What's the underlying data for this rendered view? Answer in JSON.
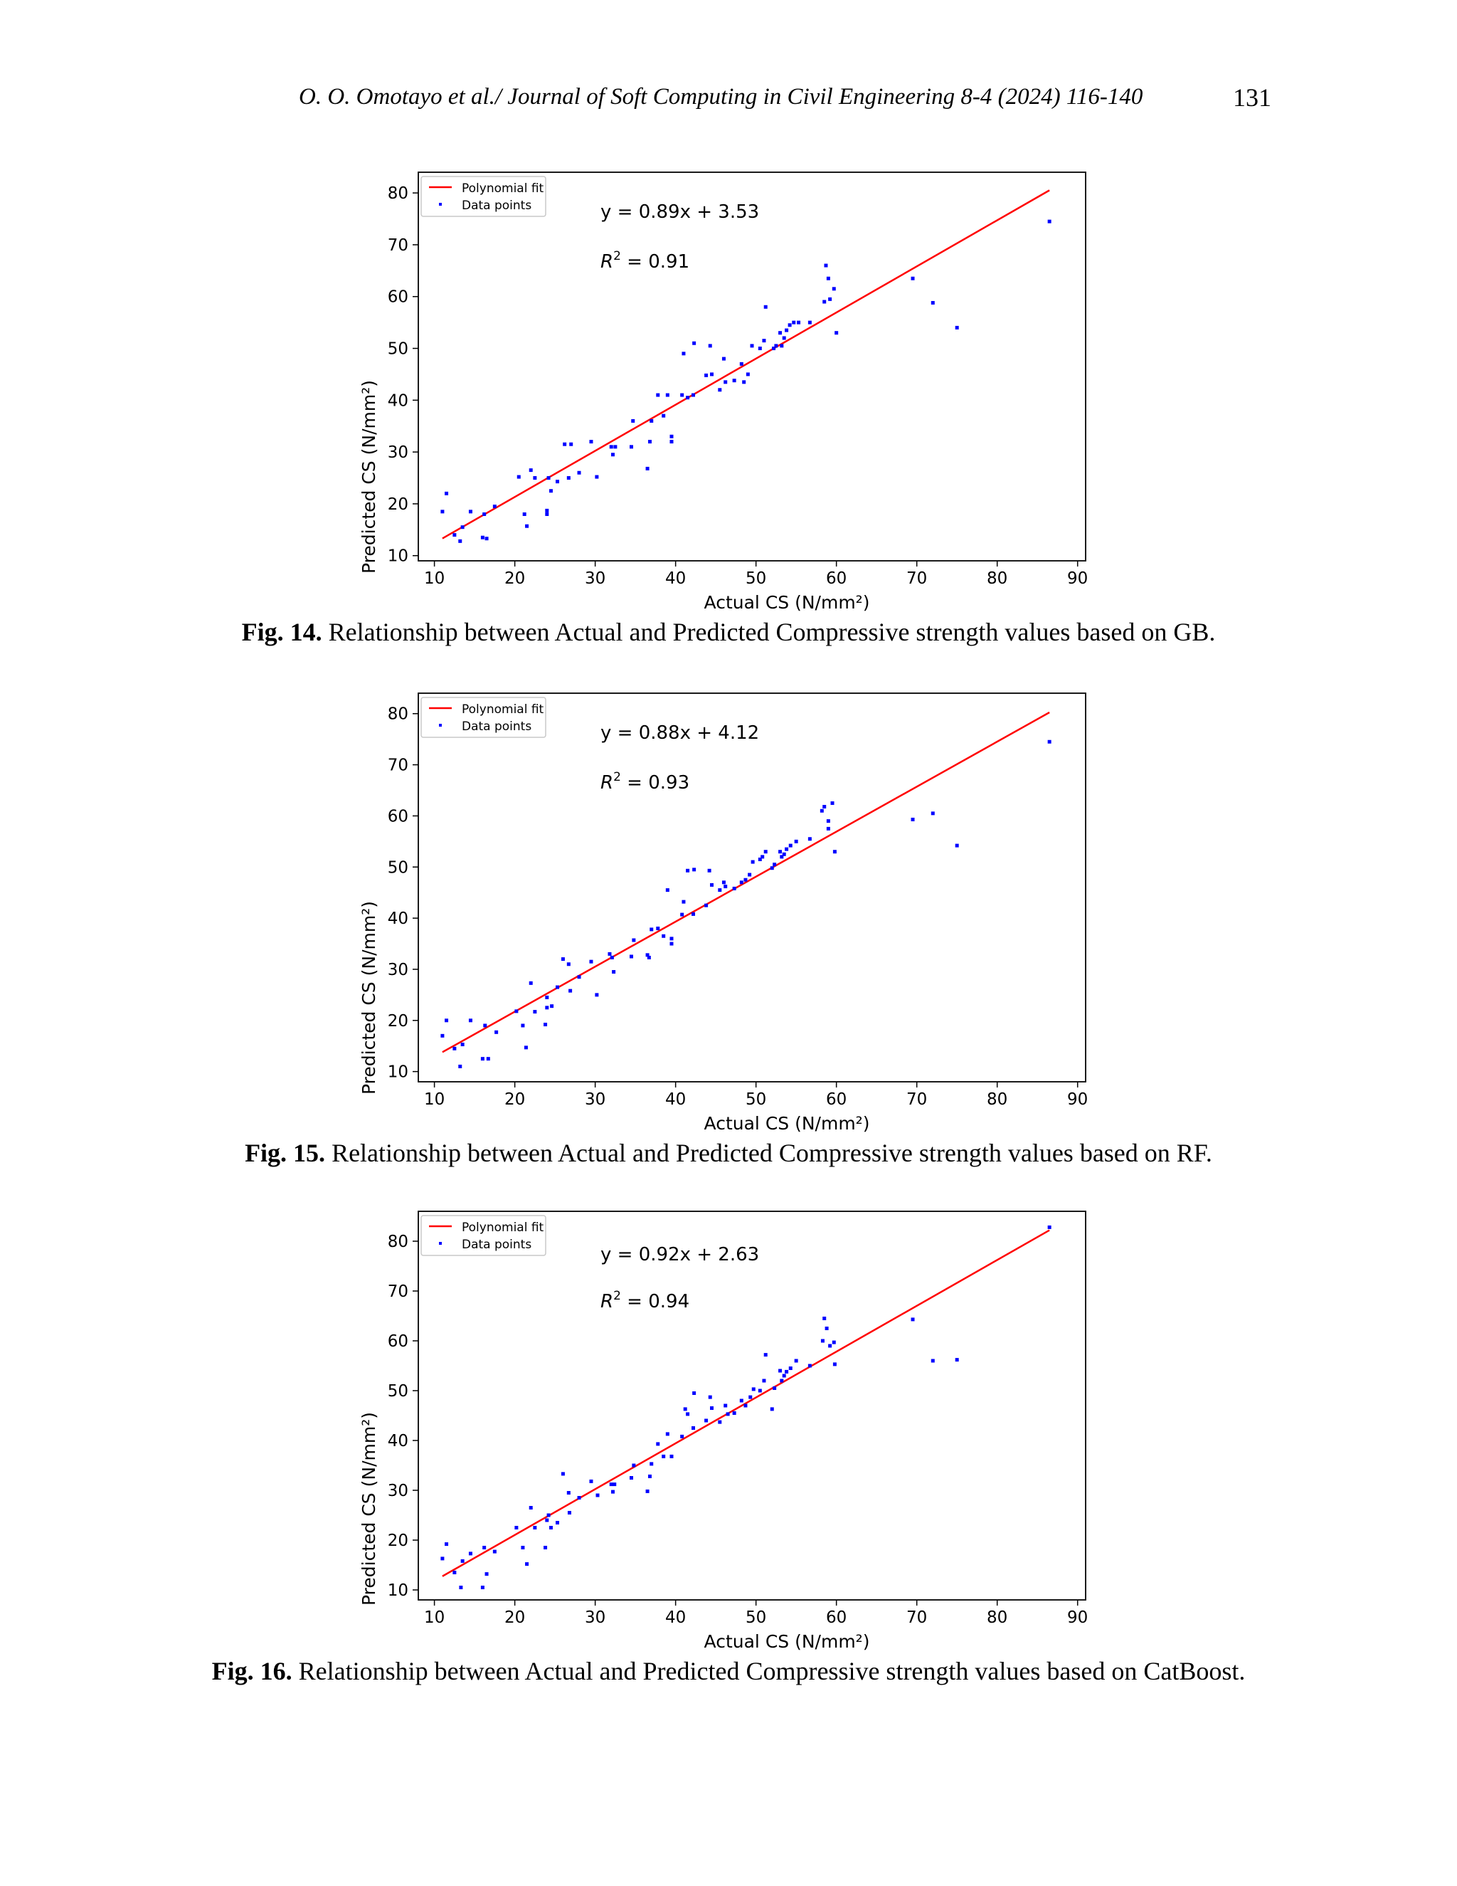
{
  "header": {
    "running_title": "O. O. Omotayo et al./ Journal of Soft Computing in Civil Engineering 8-4 (2024) 116-140",
    "page_number": "131"
  },
  "colors": {
    "fit_line": "#ff0000",
    "points": "#0000ff",
    "axes": "#000000"
  },
  "figures": [
    {
      "caption_label": "Fig. 14.",
      "caption_text": " Relationship between Actual and Predicted Compressive strength values based on GB.",
      "legend": [
        "Polynomial fit",
        "Data points"
      ],
      "equation": "y = 0.89x + 3.53",
      "r2_value": " = 0.91",
      "xlabel": "Actual CS (N/mm²)",
      "ylabel": "Predicted CS (N/mm²)"
    },
    {
      "caption_label": "Fig. 15.",
      "caption_text": " Relationship between Actual and Predicted Compressive strength values based on RF.",
      "legend": [
        "Polynomial fit",
        "Data points"
      ],
      "equation": "y = 0.88x + 4.12",
      "r2_value": " = 0.93",
      "xlabel": "Actual CS (N/mm²)",
      "ylabel": "Predicted CS (N/mm²)"
    },
    {
      "caption_label": "Fig. 16.",
      "caption_text": " Relationship between Actual and Predicted Compressive strength values based on CatBoost.",
      "legend": [
        "Polynomial fit",
        "Data points"
      ],
      "equation": "y = 0.92x + 2.63",
      "r2_value": " = 0.94",
      "xlabel": "Actual CS (N/mm²)",
      "ylabel": "Predicted CS (N/mm²)"
    }
  ],
  "chart_data": [
    {
      "type": "scatter",
      "xlim": [
        8,
        91
      ],
      "ylim": [
        9,
        84
      ],
      "xticks": [
        10,
        20,
        30,
        40,
        50,
        60,
        70,
        80,
        90
      ],
      "yticks": [
        10,
        20,
        30,
        40,
        50,
        60,
        70,
        80
      ],
      "fit": {
        "slope": 0.89,
        "intercept": 3.53,
        "x_range": [
          11,
          86.5
        ]
      },
      "legend_position": "upper-left",
      "points": [
        [
          11,
          18.5
        ],
        [
          11.5,
          22
        ],
        [
          12.5,
          14
        ],
        [
          13.2,
          12.8
        ],
        [
          13.5,
          15.5
        ],
        [
          14.5,
          18.5
        ],
        [
          16,
          13.5
        ],
        [
          16.2,
          18
        ],
        [
          16.5,
          13.3
        ],
        [
          17.5,
          19.5
        ],
        [
          20.5,
          25.2
        ],
        [
          21.2,
          18
        ],
        [
          21.5,
          15.7
        ],
        [
          22,
          26.5
        ],
        [
          22.5,
          25
        ],
        [
          24,
          18
        ],
        [
          24,
          18.7
        ],
        [
          24.2,
          25
        ],
        [
          24.5,
          22.5
        ],
        [
          25.3,
          24.3
        ],
        [
          26.2,
          31.5
        ],
        [
          26.7,
          25
        ],
        [
          27,
          31.5
        ],
        [
          28,
          26
        ],
        [
          29.5,
          32
        ],
        [
          30.2,
          25.2
        ],
        [
          32,
          31
        ],
        [
          32.2,
          29.5
        ],
        [
          32.5,
          31
        ],
        [
          34.5,
          31
        ],
        [
          34.7,
          36
        ],
        [
          36.5,
          26.8
        ],
        [
          36.8,
          32
        ],
        [
          37,
          36
        ],
        [
          37.8,
          41
        ],
        [
          38.5,
          37
        ],
        [
          39,
          41
        ],
        [
          39.5,
          33
        ],
        [
          39.5,
          32
        ],
        [
          40.8,
          41
        ],
        [
          41,
          49
        ],
        [
          41.5,
          40.5
        ],
        [
          42.2,
          41
        ],
        [
          42.3,
          51
        ],
        [
          43.8,
          44.8
        ],
        [
          44.3,
          50.5
        ],
        [
          44.5,
          45
        ],
        [
          45.5,
          42
        ],
        [
          46,
          48
        ],
        [
          46.2,
          43.5
        ],
        [
          47.3,
          43.8
        ],
        [
          48.2,
          47
        ],
        [
          48.5,
          43.5
        ],
        [
          49,
          45
        ],
        [
          49.5,
          50.5
        ],
        [
          50.5,
          50
        ],
        [
          51,
          51.5
        ],
        [
          51.2,
          58
        ],
        [
          52.2,
          50
        ],
        [
          52.5,
          50.5
        ],
        [
          53,
          53
        ],
        [
          53.2,
          50.5
        ],
        [
          53.5,
          52
        ],
        [
          53.8,
          53.5
        ],
        [
          54.2,
          54.5
        ],
        [
          54.7,
          55
        ],
        [
          55.3,
          55
        ],
        [
          56.7,
          55
        ],
        [
          58.5,
          59
        ],
        [
          58.7,
          66
        ],
        [
          59,
          63.5
        ],
        [
          59.2,
          59.5
        ],
        [
          59.7,
          61.5
        ],
        [
          60,
          53
        ],
        [
          69.5,
          63.5
        ],
        [
          72,
          58.8
        ],
        [
          75,
          54
        ],
        [
          86.5,
          74.5
        ]
      ]
    },
    {
      "type": "scatter",
      "xlim": [
        8,
        91
      ],
      "ylim": [
        8,
        84
      ],
      "xticks": [
        10,
        20,
        30,
        40,
        50,
        60,
        70,
        80,
        90
      ],
      "yticks": [
        10,
        20,
        30,
        40,
        50,
        60,
        70,
        80
      ],
      "fit": {
        "slope": 0.88,
        "intercept": 4.12,
        "x_range": [
          11,
          86.5
        ]
      },
      "legend_position": "upper-left",
      "points": [
        [
          11,
          17
        ],
        [
          11.5,
          20
        ],
        [
          12.5,
          14.5
        ],
        [
          13.2,
          11
        ],
        [
          13.5,
          15.3
        ],
        [
          14.5,
          20
        ],
        [
          16,
          12.5
        ],
        [
          16.3,
          19
        ],
        [
          16.7,
          12.5
        ],
        [
          17.7,
          17.7
        ],
        [
          20.2,
          21.8
        ],
        [
          21,
          19
        ],
        [
          21.4,
          14.7
        ],
        [
          22,
          27.3
        ],
        [
          22.5,
          21.7
        ],
        [
          23.8,
          19.2
        ],
        [
          24,
          24.5
        ],
        [
          24,
          22.5
        ],
        [
          24.6,
          22.8
        ],
        [
          25.3,
          26.5
        ],
        [
          26,
          32
        ],
        [
          26.7,
          31
        ],
        [
          26.9,
          25.8
        ],
        [
          28,
          28.5
        ],
        [
          29.5,
          31.5
        ],
        [
          30.2,
          25
        ],
        [
          31.8,
          33
        ],
        [
          32.1,
          32.3
        ],
        [
          32.3,
          29.5
        ],
        [
          34.5,
          32.5
        ],
        [
          34.8,
          35.7
        ],
        [
          36.5,
          32.8
        ],
        [
          36.7,
          32.3
        ],
        [
          37,
          37.8
        ],
        [
          37.8,
          38
        ],
        [
          38.5,
          36.5
        ],
        [
          39,
          45.5
        ],
        [
          39.5,
          35
        ],
        [
          39.5,
          36
        ],
        [
          40.8,
          40.7
        ],
        [
          41,
          43.2
        ],
        [
          41.5,
          49.3
        ],
        [
          42.2,
          40.8
        ],
        [
          42.3,
          49.5
        ],
        [
          43.8,
          42.5
        ],
        [
          44.2,
          49.3
        ],
        [
          44.5,
          46.5
        ],
        [
          45.5,
          45.5
        ],
        [
          46,
          47
        ],
        [
          46.2,
          46.2
        ],
        [
          47.3,
          45.8
        ],
        [
          48.2,
          47
        ],
        [
          48.7,
          47.5
        ],
        [
          49.2,
          48.5
        ],
        [
          49.6,
          51
        ],
        [
          50.5,
          51.5
        ],
        [
          50.8,
          52
        ],
        [
          51.2,
          53
        ],
        [
          52,
          49.8
        ],
        [
          52.3,
          50.5
        ],
        [
          53,
          53
        ],
        [
          53.2,
          52
        ],
        [
          53.5,
          52.5
        ],
        [
          53.8,
          53.5
        ],
        [
          54.3,
          54.2
        ],
        [
          55,
          55
        ],
        [
          56.7,
          55.5
        ],
        [
          58.2,
          61
        ],
        [
          58.5,
          61.8
        ],
        [
          59,
          57.5
        ],
        [
          59,
          59
        ],
        [
          59.5,
          62.5
        ],
        [
          59.8,
          53
        ],
        [
          69.5,
          59.3
        ],
        [
          72,
          60.5
        ],
        [
          75,
          54.2
        ],
        [
          86.5,
          74.5
        ]
      ]
    },
    {
      "type": "scatter",
      "xlim": [
        8,
        91
      ],
      "ylim": [
        8,
        86
      ],
      "xticks": [
        10,
        20,
        30,
        40,
        50,
        60,
        70,
        80,
        90
      ],
      "yticks": [
        10,
        20,
        30,
        40,
        50,
        60,
        70,
        80
      ],
      "fit": {
        "slope": 0.92,
        "intercept": 2.63,
        "x_range": [
          11,
          86.5
        ]
      },
      "legend_position": "upper-left",
      "points": [
        [
          11,
          16.3
        ],
        [
          11.5,
          19.2
        ],
        [
          12.5,
          13.5
        ],
        [
          13.3,
          10.5
        ],
        [
          13.5,
          15.8
        ],
        [
          14.5,
          17.3
        ],
        [
          16,
          10.5
        ],
        [
          16.2,
          18.5
        ],
        [
          16.5,
          13.2
        ],
        [
          17.5,
          17.7
        ],
        [
          20.2,
          22.5
        ],
        [
          21,
          18.5
        ],
        [
          21.5,
          15.2
        ],
        [
          22,
          26.5
        ],
        [
          22.5,
          22.5
        ],
        [
          23.8,
          18.5
        ],
        [
          24,
          24
        ],
        [
          24.2,
          25
        ],
        [
          24.5,
          22.5
        ],
        [
          25.3,
          23.5
        ],
        [
          26,
          33.3
        ],
        [
          26.7,
          29.5
        ],
        [
          26.8,
          25.5
        ],
        [
          28,
          28.5
        ],
        [
          29.5,
          31.8
        ],
        [
          30.3,
          29
        ],
        [
          32,
          31.2
        ],
        [
          32.2,
          29.7
        ],
        [
          32.4,
          31.2
        ],
        [
          34.5,
          32.5
        ],
        [
          34.8,
          35
        ],
        [
          36.5,
          29.8
        ],
        [
          36.8,
          32.8
        ],
        [
          37,
          35.3
        ],
        [
          37.8,
          39.3
        ],
        [
          38.5,
          36.8
        ],
        [
          39,
          41.3
        ],
        [
          39.5,
          36.8
        ],
        [
          40.8,
          40.8
        ],
        [
          41.2,
          46.3
        ],
        [
          41.5,
          45.3
        ],
        [
          42.2,
          42.5
        ],
        [
          42.3,
          49.5
        ],
        [
          43.8,
          44
        ],
        [
          44.3,
          48.7
        ],
        [
          44.5,
          46.5
        ],
        [
          45.5,
          43.7
        ],
        [
          46.2,
          47
        ],
        [
          46.5,
          45.3
        ],
        [
          47.3,
          45.5
        ],
        [
          48.2,
          48
        ],
        [
          48.7,
          47
        ],
        [
          49.3,
          48.7
        ],
        [
          49.7,
          50.3
        ],
        [
          50.5,
          50
        ],
        [
          51,
          52
        ],
        [
          51.2,
          57.2
        ],
        [
          52,
          46.3
        ],
        [
          52.3,
          50.5
        ],
        [
          53,
          54
        ],
        [
          53.2,
          52
        ],
        [
          53.5,
          53
        ],
        [
          53.8,
          53.8
        ],
        [
          54.3,
          54.5
        ],
        [
          55,
          56
        ],
        [
          56.7,
          55
        ],
        [
          58.3,
          60
        ],
        [
          58.5,
          64.5
        ],
        [
          58.8,
          62.5
        ],
        [
          59.2,
          59
        ],
        [
          59.7,
          59.7
        ],
        [
          59.8,
          55.3
        ],
        [
          69.5,
          64.3
        ],
        [
          72,
          56
        ],
        [
          75,
          56.2
        ],
        [
          86.5,
          82.8
        ]
      ]
    }
  ]
}
